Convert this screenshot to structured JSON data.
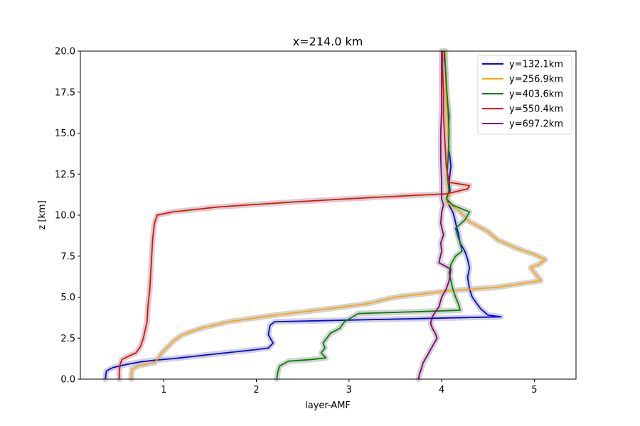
{
  "chart_data": {
    "type": "line",
    "title": "x=214.0 km",
    "xlabel": "layer-AMF",
    "ylabel": "z [km]",
    "xlim": [
      0.1,
      5.45
    ],
    "ylim": [
      0,
      20
    ],
    "xticks": [
      1,
      2,
      3,
      4,
      5
    ],
    "yticks": [
      0.0,
      2.5,
      5.0,
      7.5,
      10.0,
      12.5,
      15.0,
      17.5,
      20.0
    ],
    "xtick_labels": [
      "1",
      "2",
      "3",
      "4",
      "5"
    ],
    "ytick_labels": [
      "0.0",
      "2.5",
      "5.0",
      "7.5",
      "10.0",
      "12.5",
      "15.0",
      "17.5",
      "20.0"
    ],
    "grid": false,
    "legend_position": "top-right",
    "band_color": "#c8c8c8",
    "series": [
      {
        "name": "y=132.1km",
        "color": "#0000ff",
        "x": [
          0.37,
          0.38,
          0.45,
          0.6,
          0.75,
          0.9,
          1.1,
          1.5,
          2.0,
          2.13,
          2.18,
          2.15,
          2.13,
          2.14,
          2.15,
          2.2,
          4.64,
          4.5,
          4.42,
          4.38,
          4.33,
          4.3,
          4.28,
          4.3,
          4.28,
          4.25,
          4.2,
          4.18,
          4.16,
          4.14,
          4.12,
          4.08,
          4.06,
          4.09,
          4.08,
          4.1,
          4.08,
          4.07,
          4.08,
          4.07,
          4.06,
          4.05,
          4.05,
          4.04,
          4.03,
          4.03
        ],
        "y": [
          0.0,
          0.5,
          0.7,
          0.9,
          1.05,
          1.15,
          1.25,
          1.5,
          1.8,
          1.9,
          2.2,
          2.5,
          2.7,
          3.1,
          3.3,
          3.5,
          3.8,
          3.9,
          4.3,
          4.6,
          5.0,
          5.5,
          6.2,
          6.8,
          7.3,
          7.8,
          8.3,
          8.9,
          9.3,
          9.8,
          10.2,
          10.6,
          11.0,
          11.5,
          12.0,
          13.0,
          14.0,
          15.0,
          16.0,
          16.5,
          17.0,
          17.5,
          18.0,
          19.0,
          19.5,
          20.0
        ]
      },
      {
        "name": "y=256.9km",
        "color": "#ffa500",
        "x": [
          0.65,
          0.65,
          0.66,
          0.72,
          0.8,
          0.9,
          0.93,
          0.98,
          1.05,
          1.1,
          1.2,
          1.4,
          1.7,
          2.2,
          2.8,
          3.2,
          3.5,
          4.1,
          4.6,
          5.07,
          5.0,
          4.96,
          5.05,
          5.12,
          5.0,
          4.8,
          4.6,
          4.5,
          4.4,
          4.3,
          4.25,
          4.18,
          4.1,
          4.05,
          4.08,
          4.06,
          4.06,
          4.08,
          4.07,
          4.06,
          4.05,
          4.04,
          4.04
        ],
        "y": [
          0.0,
          0.3,
          0.6,
          0.8,
          0.9,
          1.0,
          1.2,
          1.6,
          2.0,
          2.3,
          2.7,
          3.1,
          3.5,
          3.9,
          4.3,
          4.6,
          5.0,
          5.4,
          5.6,
          6.0,
          6.5,
          6.8,
          7.0,
          7.3,
          7.6,
          8.0,
          8.5,
          9.0,
          9.3,
          9.6,
          9.9,
          10.3,
          10.6,
          10.8,
          11.2,
          12.0,
          13.0,
          14.0,
          15.0,
          16.0,
          17.0,
          18.5,
          20.0
        ]
      },
      {
        "name": "y=403.6km",
        "color": "#008000",
        "x": [
          2.22,
          2.23,
          2.25,
          2.35,
          2.6,
          2.75,
          2.7,
          2.74,
          2.72,
          2.76,
          2.8,
          2.9,
          2.95,
          3.1,
          4.2,
          4.18,
          4.15,
          4.12,
          4.1,
          4.08,
          4.1,
          4.15,
          4.22,
          4.2,
          4.17,
          4.15,
          4.25,
          4.3,
          4.12,
          4.05,
          4.08,
          4.06,
          4.07,
          4.08,
          4.07,
          4.05,
          4.04,
          4.03
        ],
        "y": [
          0.0,
          0.4,
          0.8,
          1.1,
          1.2,
          1.3,
          1.6,
          1.9,
          2.2,
          2.5,
          2.8,
          3.1,
          3.5,
          4.0,
          4.2,
          4.6,
          5.0,
          5.5,
          6.0,
          6.5,
          7.0,
          7.5,
          7.8,
          8.3,
          8.8,
          9.2,
          9.7,
          10.2,
          10.6,
          11.0,
          11.5,
          12.5,
          13.5,
          15.0,
          16.5,
          18.0,
          19.0,
          20.0
        ]
      },
      {
        "name": "y=550.4km",
        "color": "#ff0000",
        "x": [
          0.52,
          0.52,
          0.53,
          0.55,
          0.62,
          0.7,
          0.75,
          0.78,
          0.8,
          0.82,
          0.83,
          0.85,
          0.86,
          0.87,
          0.88,
          0.9,
          0.93,
          1.1,
          1.6,
          2.4,
          3.0,
          4.05,
          4.28,
          4.3,
          4.08,
          4.05,
          4.04,
          4.03,
          4.02,
          4.02,
          4.01,
          4.01
        ],
        "y": [
          0.0,
          0.5,
          0.9,
          1.2,
          1.4,
          1.6,
          2.0,
          2.5,
          3.0,
          3.5,
          4.5,
          5.5,
          6.5,
          7.5,
          8.5,
          9.5,
          10.0,
          10.2,
          10.5,
          10.8,
          11.0,
          11.3,
          11.6,
          11.8,
          12.0,
          13.0,
          14.0,
          15.0,
          16.0,
          17.5,
          19.0,
          20.0
        ]
      },
      {
        "name": "y=697.2km",
        "color": "#800080",
        "x": [
          3.75,
          3.76,
          3.78,
          3.8,
          3.85,
          3.88,
          3.92,
          3.95,
          3.93,
          3.9,
          3.88,
          3.9,
          3.93,
          3.97,
          4.0,
          4.05,
          4.08,
          4.1,
          3.97,
          4.0,
          3.99,
          4.02,
          3.99,
          4.0,
          4.02,
          4.0,
          4.0,
          3.99,
          3.99,
          4.0,
          4.0,
          4.0,
          4.0
        ],
        "y": [
          0.0,
          0.3,
          0.6,
          1.0,
          1.5,
          1.8,
          2.2,
          2.5,
          2.8,
          3.1,
          3.4,
          3.8,
          4.1,
          4.4,
          5.0,
          5.5,
          6.0,
          6.7,
          7.1,
          7.8,
          8.3,
          8.8,
          9.5,
          10.2,
          10.6,
          11.0,
          12.0,
          13.5,
          15.0,
          16.5,
          18.0,
          19.0,
          20.0
        ]
      }
    ]
  }
}
